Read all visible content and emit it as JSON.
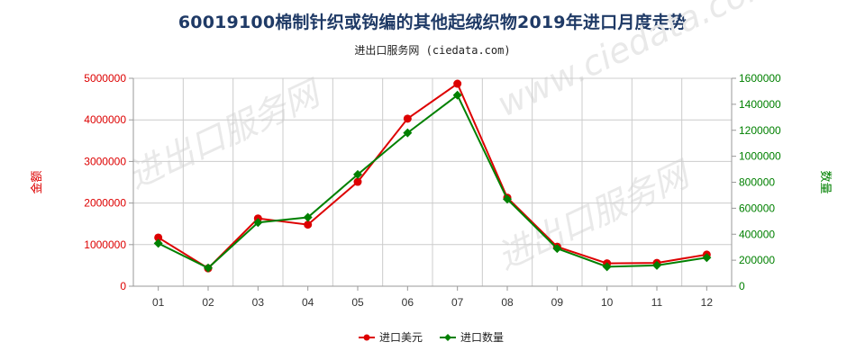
{
  "title": "60019100棉制针织或钩编的其他起绒织物2019年进口月度走势",
  "subtitle": "进出口服务网 (ciedata.com)",
  "colors": {
    "usd": "#dd0000",
    "qty": "#008000",
    "grid": "#cccccc",
    "title": "#1f3a66"
  },
  "chart_data": {
    "type": "line",
    "title": "60019100棉制针织或钩编的其他起绒织物2019年进口月度走势",
    "categories": [
      "01",
      "02",
      "03",
      "04",
      "05",
      "06",
      "07",
      "08",
      "09",
      "10",
      "11",
      "12"
    ],
    "y_left": {
      "label": "金额",
      "min": 0,
      "max": 5000000,
      "ticks": [
        "0",
        "1000000",
        "2000000",
        "3000000",
        "4000000",
        "5000000"
      ]
    },
    "y_right": {
      "label": "数量",
      "min": 0,
      "max": 1600000,
      "ticks": [
        "0",
        "200000",
        "400000",
        "600000",
        "800000",
        "1000000",
        "1200000",
        "1400000",
        "1600000"
      ]
    },
    "grid": true,
    "legend_position": "bottom",
    "series": [
      {
        "name": "进口美元",
        "axis": "left",
        "color": "#dd0000",
        "values": [
          1170000,
          430000,
          1630000,
          1480000,
          2510000,
          4030000,
          4870000,
          2130000,
          950000,
          550000,
          560000,
          760000
        ]
      },
      {
        "name": "进口数量",
        "axis": "right",
        "color": "#008000",
        "values": [
          330000,
          140000,
          490000,
          530000,
          860000,
          1180000,
          1470000,
          670000,
          290000,
          150000,
          160000,
          220000
        ]
      }
    ]
  }
}
